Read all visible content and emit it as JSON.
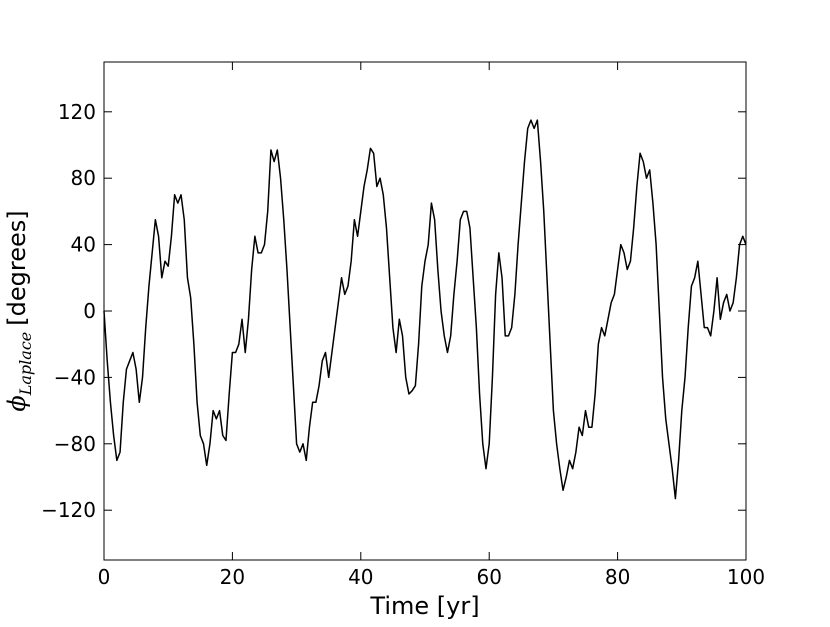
{
  "chart_data": {
    "type": "line",
    "xlabel": "Time [yr]",
    "ylabel": {
      "symbol": "ϕ",
      "subscript": "Laplace",
      "text": "[degrees]"
    },
    "xlim": [
      0,
      100
    ],
    "xticks": [
      0,
      20,
      40,
      60,
      80,
      100
    ],
    "ylim": [
      -150,
      150
    ],
    "yticks": [
      {
        "value": -120,
        "label": "−120"
      },
      {
        "value": -80,
        "label": "−80"
      },
      {
        "value": -40,
        "label": "−40"
      },
      0,
      40,
      80,
      120
    ],
    "x": [
      0,
      0.5,
      1,
      1.5,
      2,
      2.5,
      3,
      3.5,
      4,
      4.5,
      5,
      5.5,
      6,
      6.5,
      7,
      7.5,
      8,
      8.5,
      9,
      9.5,
      10,
      10.5,
      11,
      11.5,
      12,
      12.5,
      13,
      13.5,
      14,
      14.5,
      15,
      15.5,
      16,
      16.5,
      17,
      17.5,
      18,
      18.5,
      19,
      19.5,
      20,
      20.5,
      21,
      21.5,
      22,
      22.5,
      23,
      23.5,
      24,
      24.5,
      25,
      25.5,
      26,
      26.5,
      27,
      27.5,
      28,
      28.5,
      29,
      29.5,
      30,
      30.5,
      31,
      31.5,
      32,
      32.5,
      33,
      33.5,
      34,
      34.5,
      35,
      35.5,
      36,
      36.5,
      37,
      37.5,
      38,
      38.5,
      39,
      39.5,
      40,
      40.5,
      41,
      41.5,
      42,
      42.5,
      43,
      43.5,
      44,
      44.5,
      45,
      45.5,
      46,
      46.5,
      47,
      47.5,
      48,
      48.5,
      49,
      49.5,
      50,
      50.5,
      51,
      51.5,
      52,
      52.5,
      53,
      53.5,
      54,
      54.5,
      55,
      55.5,
      56,
      56.5,
      57,
      57.5,
      58,
      58.5,
      59,
      59.5,
      60,
      60.5,
      61,
      61.5,
      62,
      62.5,
      63,
      63.5,
      64,
      64.5,
      65,
      65.5,
      66,
      66.5,
      67,
      67.5,
      68,
      68.5,
      69,
      69.5,
      70,
      70.5,
      71,
      71.5,
      72,
      72.5,
      73,
      73.5,
      74,
      74.5,
      75,
      75.5,
      76,
      76.5,
      77,
      77.5,
      78,
      78.5,
      79,
      79.5,
      80,
      80.5,
      81,
      81.5,
      82,
      82.5,
      83,
      83.5,
      84,
      84.5,
      85,
      85.5,
      86,
      86.5,
      87,
      87.5,
      88,
      88.5,
      89,
      89.5,
      90,
      90.5,
      91,
      91.5,
      92,
      92.5,
      93,
      93.5,
      94,
      94.5,
      95,
      95.5,
      96,
      96.5,
      97,
      97.5,
      98,
      98.5,
      99,
      99.5,
      100
    ],
    "series": [
      {
        "color": "#000000",
        "values": [
          0,
          -30,
          -55,
          -75,
          -90,
          -85,
          -55,
          -35,
          -30,
          -25,
          -35,
          -55,
          -40,
          -10,
          15,
          35,
          55,
          45,
          20,
          30,
          27,
          45,
          70,
          65,
          70,
          55,
          20,
          8,
          -20,
          -55,
          -75,
          -80,
          -93,
          -80,
          -60,
          -65,
          -60,
          -75,
          -78,
          -50,
          -25,
          -25,
          -20,
          -5,
          -25,
          -5,
          25,
          45,
          35,
          35,
          40,
          60,
          97,
          90,
          97,
          80,
          55,
          25,
          -10,
          -45,
          -80,
          -85,
          -80,
          -90,
          -70,
          -55,
          -55,
          -45,
          -30,
          -25,
          -40,
          -25,
          -10,
          5,
          20,
          10,
          15,
          30,
          55,
          45,
          60,
          75,
          85,
          98,
          95,
          75,
          80,
          70,
          50,
          20,
          -10,
          -25,
          -5,
          -15,
          -40,
          -50,
          -48,
          -45,
          -20,
          15,
          30,
          40,
          65,
          55,
          25,
          0,
          -15,
          -25,
          -15,
          10,
          30,
          55,
          60,
          60,
          50,
          20,
          -10,
          -50,
          -80,
          -95,
          -80,
          -40,
          10,
          35,
          20,
          -15,
          -15,
          -10,
          10,
          40,
          65,
          90,
          110,
          115,
          110,
          115,
          90,
          60,
          20,
          -20,
          -60,
          -80,
          -95,
          -108,
          -100,
          -90,
          -95,
          -85,
          -70,
          -75,
          -60,
          -70,
          -70,
          -50,
          -20,
          -10,
          -15,
          -5,
          5,
          10,
          25,
          40,
          35,
          25,
          30,
          50,
          75,
          95,
          90,
          80,
          85,
          65,
          40,
          0,
          -40,
          -65,
          -80,
          -95,
          -113,
          -90,
          -60,
          -40,
          -10,
          15,
          20,
          30,
          10,
          -10,
          -10,
          -15,
          0,
          20,
          -5,
          5,
          10,
          0,
          5,
          20,
          40,
          45,
          40
        ]
      }
    ]
  }
}
